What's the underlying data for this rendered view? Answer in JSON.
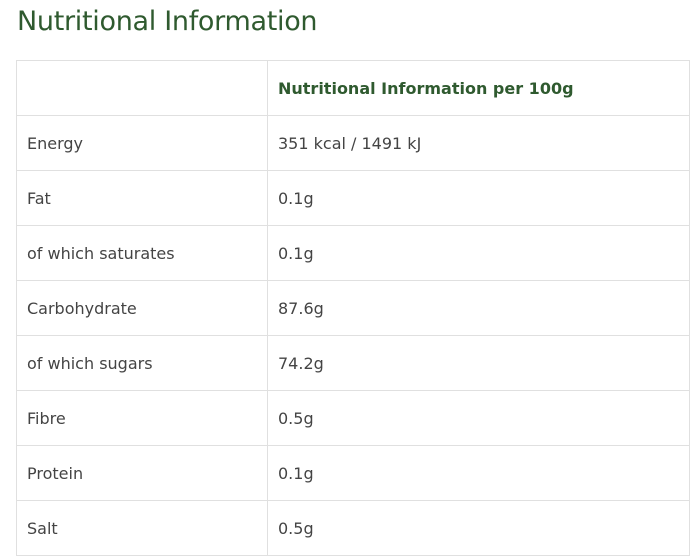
{
  "header": {
    "title": "Nutritional Information"
  },
  "table": {
    "header": [
      "",
      "Nutritional Information per 100g"
    ],
    "rows": [
      [
        "Energy",
        "351 kcal / 1491 kJ"
      ],
      [
        "Fat",
        "0.1g"
      ],
      [
        "of which saturates",
        "0.1g"
      ],
      [
        "Carbohydrate",
        "87.6g"
      ],
      [
        "of which sugars",
        "74.2g"
      ],
      [
        "Fibre",
        "0.5g"
      ],
      [
        "Protein",
        "0.1g"
      ],
      [
        "Salt",
        "0.5g"
      ]
    ]
  }
}
